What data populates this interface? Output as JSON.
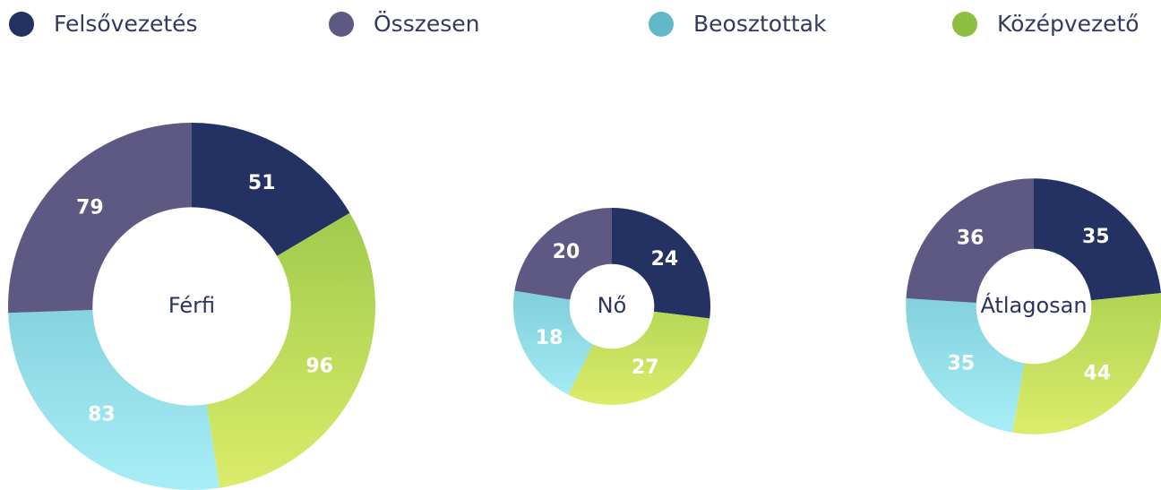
{
  "legend": [
    {
      "name": "Felsővezetés",
      "color": "#233263"
    },
    {
      "name": "Összesen",
      "color": "#5e5983"
    },
    {
      "name": "Beosztottak",
      "color": "#62b8c7"
    },
    {
      "name": "Középvezető",
      "color": "#8cc043"
    }
  ],
  "chart_data": [
    {
      "type": "pie",
      "title": "Férfi",
      "categories": [
        "Felsővezetés",
        "Középvezető",
        "Beosztottak",
        "Összesen"
      ],
      "values": [
        51,
        96,
        83,
        79
      ],
      "colors": [
        "#233263",
        "#8cc043",
        "#62b8c7",
        "#5e5983"
      ],
      "gradient_end_colors": [
        "#233263",
        "#dcec6a",
        "#a8eef6",
        "#5e5983"
      ]
    },
    {
      "type": "pie",
      "title": "Nő",
      "categories": [
        "Felsővezetés",
        "Középvezető",
        "Beosztottak",
        "Összesen"
      ],
      "values": [
        24,
        27,
        18,
        20
      ],
      "colors": [
        "#233263",
        "#8cc043",
        "#62b8c7",
        "#5e5983"
      ],
      "gradient_end_colors": [
        "#233263",
        "#dcec6a",
        "#a8eef6",
        "#5e5983"
      ]
    },
    {
      "type": "pie",
      "title": "Átlagosan",
      "categories": [
        "Felsővezetés",
        "Középvezető",
        "Beosztottak",
        "Összesen"
      ],
      "values": [
        35,
        44,
        35,
        36
      ],
      "colors": [
        "#233263",
        "#8cc043",
        "#62b8c7",
        "#5e5983"
      ],
      "gradient_end_colors": [
        "#233263",
        "#dcec6a",
        "#a8eef6",
        "#5e5983"
      ]
    }
  ]
}
